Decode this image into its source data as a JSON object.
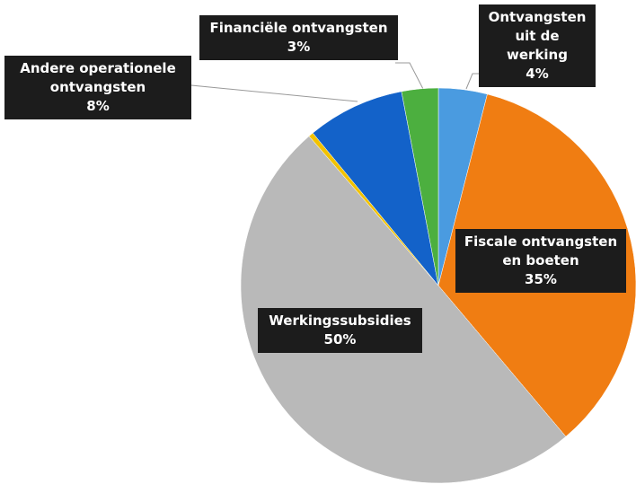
{
  "chart_data": {
    "type": "pie",
    "categories": [
      "Ontvangsten uit de werking",
      "Fiscale ontvangsten en boeten",
      "Werkingssubsidies",
      null,
      "Andere operationele ontvangsten",
      "Financiële ontvangsten"
    ],
    "values": [
      4,
      35,
      50,
      0.4,
      8,
      3
    ],
    "value_labels": [
      "4%",
      "35%",
      "50%",
      null,
      "8%",
      "3%"
    ],
    "colors": [
      "#4a9be0",
      "#f07d12",
      "#b9b9b9",
      "#f2c200",
      "#1362c9",
      "#4caf3f"
    ]
  }
}
